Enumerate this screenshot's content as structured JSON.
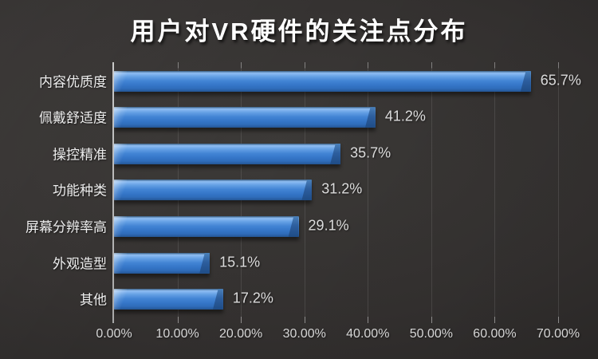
{
  "chart_data": {
    "type": "bar",
    "orientation": "horizontal",
    "title": "用户对VR硬件的关注点分布",
    "categories": [
      "内容优质度",
      "佩戴舒适度",
      "操控精准",
      "功能种类",
      "屏幕分辨率高",
      "外观造型",
      "其他"
    ],
    "values": [
      65.7,
      41.2,
      35.7,
      31.2,
      29.1,
      15.1,
      17.2
    ],
    "value_labels": [
      "65.7%",
      "41.2%",
      "35.7%",
      "31.2%",
      "29.1%",
      "15.1%",
      "17.2%"
    ],
    "x_ticks": [
      "0.00%",
      "10.00%",
      "20.00%",
      "30.00%",
      "40.00%",
      "50.00%",
      "60.00%",
      "70.00%"
    ],
    "xlim": [
      0,
      70
    ],
    "xlabel": "",
    "ylabel": "",
    "grid": true,
    "legend": false,
    "colors": {
      "bar": "#3a7dcb",
      "bar_highlight": "#8fbdf3",
      "bar_dark": "#245694",
      "background": "#343130",
      "title_text": "#ffffff",
      "label_text": "#ededed",
      "axis_text": "#d6d6d6"
    }
  }
}
